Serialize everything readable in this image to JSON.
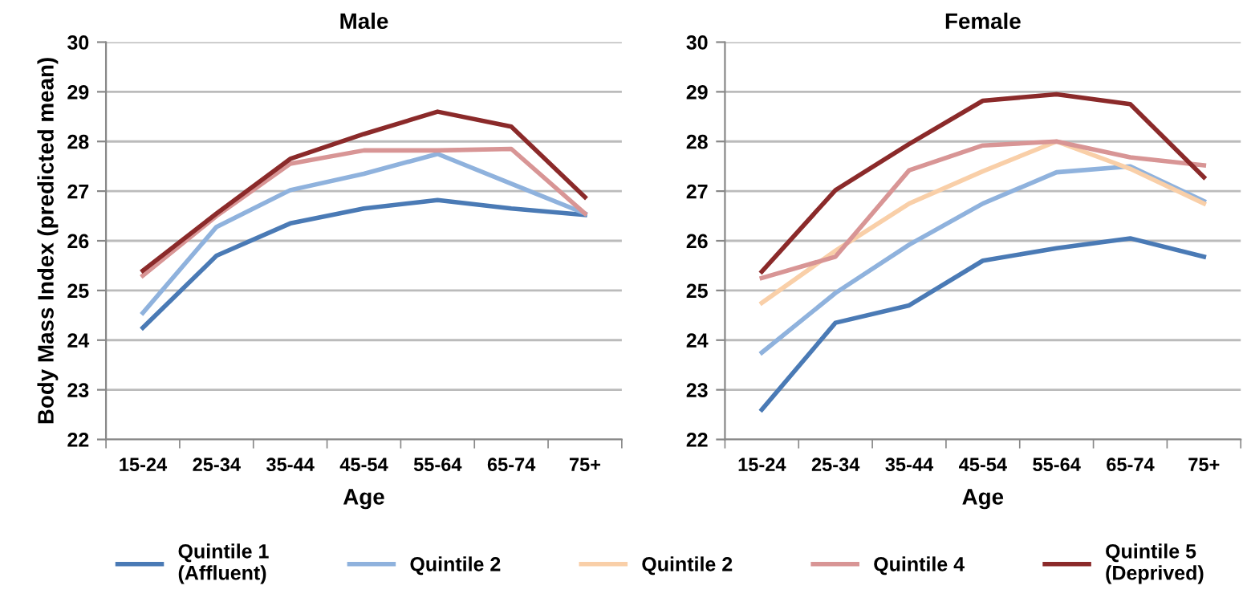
{
  "chart_data": [
    {
      "type": "line",
      "title": "Male",
      "xlabel": "Age",
      "ylabel": "Body Mass Index (predicted mean)",
      "categories": [
        "15-24",
        "25-34",
        "35-44",
        "45-54",
        "55-64",
        "65-74",
        "75+"
      ],
      "ylim": [
        22,
        30
      ],
      "yticks": [
        22,
        23,
        24,
        25,
        26,
        27,
        28,
        29,
        30
      ],
      "grid": "y",
      "series": [
        {
          "color": "#4a7ab5",
          "values": [
            24.25,
            25.7,
            26.35,
            26.65,
            26.82,
            26.65,
            26.52
          ]
        },
        {
          "color": "#8fb2dd",
          "values": [
            24.55,
            26.28,
            27.02,
            27.35,
            27.75,
            27.15,
            26.55
          ]
        },
        {
          "color": "#d89595",
          "values": [
            25.3,
            26.5,
            27.55,
            27.82,
            27.82,
            27.85,
            26.55
          ]
        },
        {
          "color": "#8b2a2a",
          "values": [
            25.4,
            26.55,
            27.65,
            28.15,
            28.6,
            28.3,
            26.88
          ]
        }
      ]
    },
    {
      "type": "line",
      "title": "Female",
      "xlabel": "Age",
      "categories": [
        "15-24",
        "25-34",
        "35-44",
        "45-54",
        "55-64",
        "65-74",
        "75+"
      ],
      "ylim": [
        22,
        30
      ],
      "yticks": [
        22,
        23,
        24,
        25,
        26,
        27,
        28,
        29,
        30
      ],
      "grid": "y",
      "legend": "bottom",
      "series": [
        {
          "name": "Quintile 1\n(Affluent)",
          "color": "#4a7ab5",
          "values": [
            22.6,
            24.35,
            24.7,
            25.6,
            25.85,
            26.05,
            25.68
          ]
        },
        {
          "name": "Quintile 2",
          "color": "#8fb2dd",
          "values": [
            23.75,
            24.95,
            25.92,
            26.75,
            27.38,
            27.5,
            26.8
          ]
        },
        {
          "name": "Quintile 2",
          "color": "#f9cfa8",
          "values": [
            24.75,
            25.8,
            26.75,
            27.4,
            28.0,
            27.45,
            26.75
          ]
        },
        {
          "name": "Quintile 4",
          "color": "#d89595",
          "values": [
            25.25,
            25.68,
            27.42,
            27.92,
            28.0,
            27.68,
            27.52
          ]
        },
        {
          "name": "Quintile 5\n(Deprived)",
          "color": "#8b2a2a",
          "values": [
            25.38,
            27.02,
            27.95,
            28.82,
            28.95,
            28.75,
            27.28
          ]
        }
      ]
    }
  ]
}
